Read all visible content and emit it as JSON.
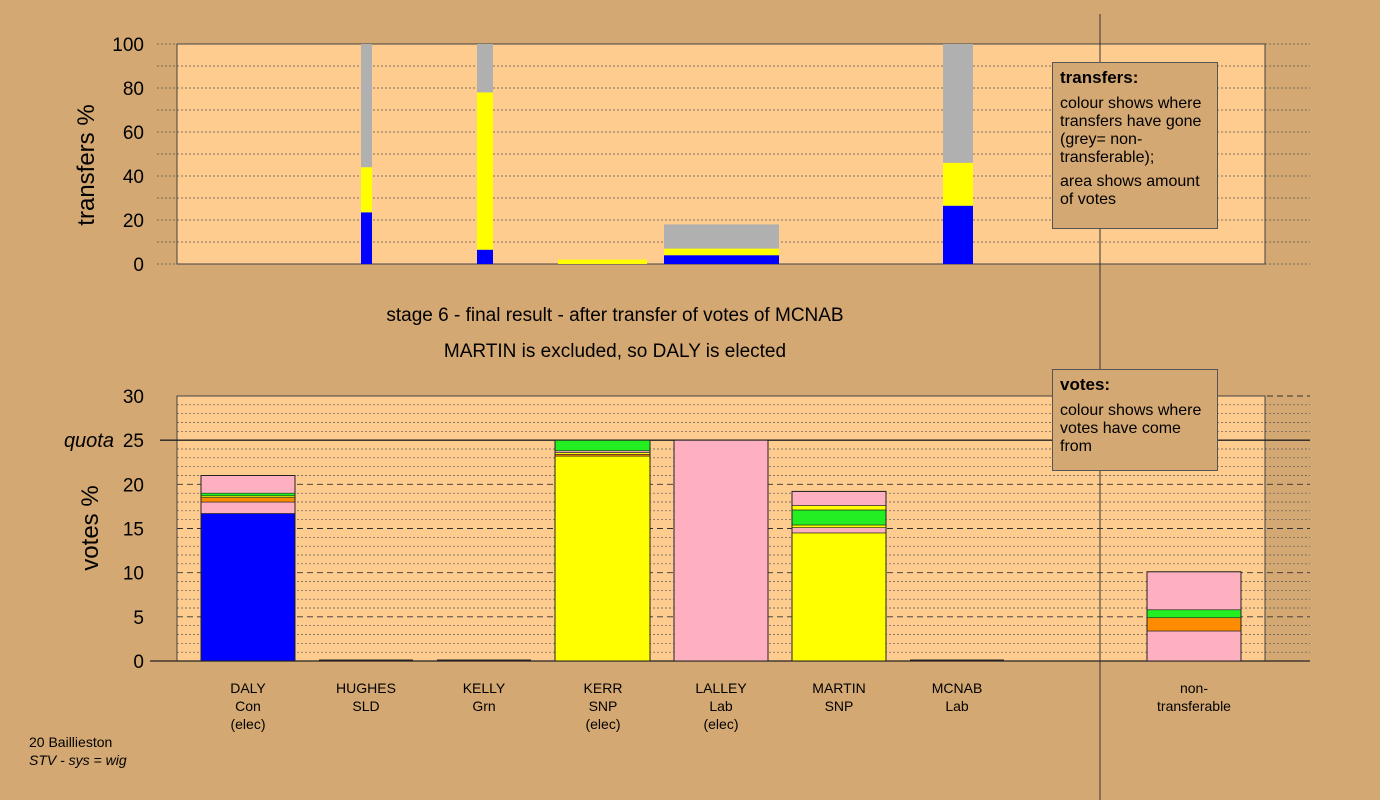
{
  "stage": {
    "line1": "stage 6 - final result - after transfer of votes of MCNAB",
    "line2": "MARTIN is excluded, so DALY is elected"
  },
  "legends": {
    "transfers": {
      "title": "transfers:",
      "p1": "colour shows where transfers have gone (grey= non-transferable);",
      "p2": "area shows amount of votes"
    },
    "votes": {
      "title": "votes:",
      "p1": "colour shows where votes have come from"
    }
  },
  "footer": {
    "line1": "20 Baillieston",
    "line2": "STV - sys = wig"
  },
  "candidates": [
    {
      "name": "DALY",
      "party": "Con",
      "status": "(elec)"
    },
    {
      "name": "HUGHES",
      "party": "SLD",
      "status": ""
    },
    {
      "name": "KELLY",
      "party": "Grn",
      "status": ""
    },
    {
      "name": "KERR",
      "party": "SNP",
      "status": "(elec)"
    },
    {
      "name": "LALLEY",
      "party": "Lab",
      "status": "(elec)"
    },
    {
      "name": "MARTIN",
      "party": "SNP",
      "status": ""
    },
    {
      "name": "MCNAB",
      "party": "Lab",
      "status": ""
    },
    {
      "name": "non-",
      "party": "transferable",
      "status": ""
    }
  ],
  "colors": {
    "Con": "#0000ff",
    "SNP": "#ffff00",
    "Lab": "#ffb0c0",
    "Grn": "#22ee22",
    "SLD": "#ff8c00",
    "nontransferable": "#b0b0b0",
    "background": "#d4a872",
    "plot": "#ffcc90"
  },
  "chart_data": [
    {
      "type": "bar",
      "stacked": true,
      "ylabel": "transfers %",
      "ylim": [
        0,
        100
      ],
      "yticks": [
        0,
        20,
        40,
        60,
        80,
        100
      ],
      "bars": [
        {
          "id": "hughes",
          "segments": [
            {
              "party": "Con",
              "value": 23.5
            },
            {
              "party": "SNP",
              "value": 20.5
            },
            {
              "party": "nontransferable",
              "value": 56
            }
          ]
        },
        {
          "id": "kelly",
          "segments": [
            {
              "party": "Con",
              "value": 6.5
            },
            {
              "party": "SNP",
              "value": 71.5
            },
            {
              "party": "nontransferable",
              "value": 22
            }
          ]
        },
        {
          "id": "kerr-surplus",
          "segments": [
            {
              "party": "SNP",
              "value": 2
            }
          ]
        },
        {
          "id": "lalley-surplus",
          "segments": [
            {
              "party": "Con",
              "value": 4
            },
            {
              "party": "SNP",
              "value": 3
            },
            {
              "party": "nontransferable",
              "value": 11
            }
          ]
        },
        {
          "id": "mcnab",
          "segments": [
            {
              "party": "Con",
              "value": 26.5
            },
            {
              "party": "SNP",
              "value": 19.5
            },
            {
              "party": "nontransferable",
              "value": 54
            }
          ]
        }
      ]
    },
    {
      "type": "bar",
      "stacked": true,
      "ylabel": "votes %",
      "ylim": [
        0,
        30
      ],
      "yticks": [
        0,
        5,
        10,
        15,
        20,
        25,
        30
      ],
      "quota": 25,
      "quota_label": "quota",
      "categories": [
        "DALY",
        "HUGHES",
        "KELLY",
        "KERR",
        "LALLEY",
        "MARTIN",
        "MCNAB",
        "non-transferable"
      ],
      "bars": [
        {
          "candidate": "DALY",
          "segments": [
            {
              "party": "Con",
              "value": 16.7
            },
            {
              "party": "Lab",
              "value": 1.3
            },
            {
              "party": "SLD",
              "value": 0.5
            },
            {
              "party": "SNP",
              "value": 0.2
            },
            {
              "party": "Grn",
              "value": 0.3
            },
            {
              "party": "Lab",
              "value": 2.0
            }
          ]
        },
        {
          "candidate": "HUGHES",
          "segments": []
        },
        {
          "candidate": "KELLY",
          "segments": []
        },
        {
          "candidate": "KERR",
          "segments": [
            {
              "party": "SNP",
              "value": 23.2
            },
            {
              "party": "SLD",
              "value": 0.2
            },
            {
              "party": "SNP",
              "value": 0.2
            },
            {
              "party": "Lab",
              "value": 0.2
            },
            {
              "party": "Grn",
              "value": 1.2
            }
          ]
        },
        {
          "candidate": "LALLEY",
          "segments": [
            {
              "party": "Lab",
              "value": 25.0
            }
          ]
        },
        {
          "candidate": "MARTIN",
          "segments": [
            {
              "party": "SNP",
              "value": 14.5
            },
            {
              "party": "Lab",
              "value": 0.6
            },
            {
              "party": "SNP",
              "value": 0.3
            },
            {
              "party": "Grn",
              "value": 1.7
            },
            {
              "party": "SNP",
              "value": 0.5
            },
            {
              "party": "Lab",
              "value": 1.6
            }
          ]
        },
        {
          "candidate": "MCNAB",
          "segments": []
        },
        {
          "candidate": "non-transferable",
          "segments": [
            {
              "party": "Lab",
              "value": 3.4
            },
            {
              "party": "SLD",
              "value": 1.5
            },
            {
              "party": "Grn",
              "value": 0.9
            },
            {
              "party": "Lab",
              "value": 4.3
            }
          ]
        }
      ]
    }
  ]
}
